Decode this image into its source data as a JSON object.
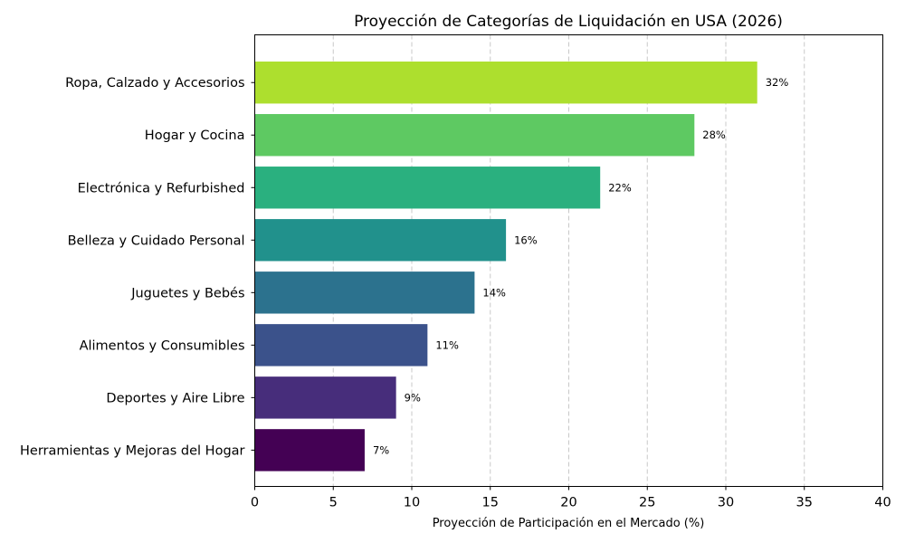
{
  "chart_data": {
    "type": "bar",
    "orientation": "horizontal",
    "title": "Proyección de Categorías de Liquidación en USA (2026)",
    "xlabel": "Proyección de Participación en el Mercado (%)",
    "ylabel": "",
    "xlim": [
      0,
      40
    ],
    "xticks": [
      0,
      5,
      10,
      15,
      20,
      25,
      30,
      35,
      40
    ],
    "grid": "x-dashed",
    "categories": [
      "Ropa, Calzado y Accesorios",
      "Hogar y Cocina",
      "Electrónica y Refurbished",
      "Belleza y Cuidado Personal",
      "Juguetes y Bebés",
      "Alimentos y Consumibles",
      "Deportes y Aire Libre",
      "Herramientas y Mejoras del Hogar"
    ],
    "values": [
      32,
      28,
      22,
      16,
      14,
      11,
      9,
      7
    ],
    "data_labels": [
      "32%",
      "28%",
      "22%",
      "16%",
      "14%",
      "11%",
      "9%",
      "7%"
    ],
    "colors": [
      "#addf2e",
      "#5ec962",
      "#2ab07f",
      "#21918c",
      "#2c728e",
      "#3b528b",
      "#472d7b",
      "#440154"
    ]
  }
}
